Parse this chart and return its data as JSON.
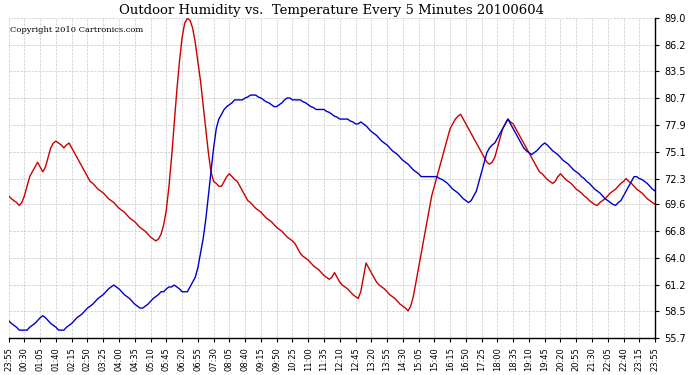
{
  "title": "Outdoor Humidity vs.  Temperature Every 5 Minutes 20100604",
  "copyright": "Copyright 2010 Cartronics.com",
  "bg_color": "#ffffff",
  "plot_bg_color": "#ffffff",
  "grid_color": "#c8c8c8",
  "line_humidity_color": "#cc0000",
  "line_temp_color": "#0000cc",
  "ylim": [
    55.7,
    89.0
  ],
  "yticks": [
    55.7,
    58.5,
    61.2,
    64.0,
    66.8,
    69.6,
    72.3,
    75.1,
    77.9,
    80.7,
    83.5,
    86.2,
    89.0
  ],
  "x_labels": [
    "23:55",
    "00:30",
    "01:05",
    "01:40",
    "02:15",
    "02:50",
    "03:25",
    "04:00",
    "04:35",
    "05:10",
    "05:45",
    "06:20",
    "06:55",
    "07:30",
    "08:05",
    "08:40",
    "09:15",
    "09:50",
    "10:25",
    "11:00",
    "11:35",
    "12:10",
    "12:45",
    "13:20",
    "13:55",
    "14:30",
    "15:05",
    "15:40",
    "16:15",
    "16:50",
    "17:25",
    "18:00",
    "18:35",
    "19:10",
    "19:45",
    "20:20",
    "20:55",
    "21:30",
    "22:05",
    "22:40",
    "23:15",
    "23:55"
  ],
  "n_ticks": 42,
  "humidity": [
    70.5,
    70.2,
    70.0,
    69.8,
    69.5,
    69.8,
    70.5,
    71.5,
    72.5,
    73.0,
    73.5,
    74.0,
    73.5,
    73.0,
    73.5,
    74.5,
    75.5,
    76.0,
    76.2,
    76.0,
    75.8,
    75.5,
    75.8,
    76.0,
    75.5,
    75.0,
    74.5,
    74.0,
    73.5,
    73.0,
    72.5,
    72.0,
    71.8,
    71.5,
    71.2,
    71.0,
    70.8,
    70.5,
    70.2,
    70.0,
    69.8,
    69.5,
    69.2,
    69.0,
    68.8,
    68.5,
    68.2,
    68.0,
    67.8,
    67.5,
    67.2,
    67.0,
    66.8,
    66.5,
    66.2,
    66.0,
    65.8,
    66.0,
    66.5,
    67.5,
    69.0,
    71.5,
    74.5,
    78.0,
    81.5,
    84.5,
    87.0,
    88.5,
    89.0,
    88.8,
    88.0,
    86.5,
    84.5,
    82.5,
    80.0,
    77.5,
    75.0,
    73.0,
    72.0,
    71.8,
    71.5,
    71.5,
    72.0,
    72.5,
    72.8,
    72.5,
    72.2,
    72.0,
    71.5,
    71.0,
    70.5,
    70.0,
    69.8,
    69.5,
    69.2,
    69.0,
    68.8,
    68.5,
    68.2,
    68.0,
    67.8,
    67.5,
    67.2,
    67.0,
    66.8,
    66.5,
    66.2,
    66.0,
    65.8,
    65.5,
    65.0,
    64.5,
    64.2,
    64.0,
    63.8,
    63.5,
    63.2,
    63.0,
    62.8,
    62.5,
    62.2,
    62.0,
    61.8,
    62.0,
    62.5,
    62.0,
    61.5,
    61.2,
    61.0,
    60.8,
    60.5,
    60.2,
    60.0,
    59.8,
    60.5,
    62.0,
    63.5,
    63.0,
    62.5,
    62.0,
    61.5,
    61.2,
    61.0,
    60.8,
    60.5,
    60.2,
    60.0,
    59.8,
    59.5,
    59.2,
    59.0,
    58.8,
    58.5,
    59.0,
    60.0,
    61.5,
    63.0,
    64.5,
    66.0,
    67.5,
    69.0,
    70.5,
    71.5,
    72.5,
    73.5,
    74.5,
    75.5,
    76.5,
    77.5,
    78.0,
    78.5,
    78.8,
    79.0,
    78.5,
    78.0,
    77.5,
    77.0,
    76.5,
    76.0,
    75.5,
    75.0,
    74.5,
    74.0,
    73.8,
    74.0,
    74.5,
    75.5,
    76.5,
    77.5,
    78.0,
    78.5,
    78.2,
    78.0,
    77.5,
    77.0,
    76.5,
    76.0,
    75.5,
    75.0,
    74.5,
    74.0,
    73.5,
    73.0,
    72.8,
    72.5,
    72.2,
    72.0,
    71.8,
    72.0,
    72.5,
    72.8,
    72.5,
    72.2,
    72.0,
    71.8,
    71.5,
    71.2,
    71.0,
    70.8,
    70.5,
    70.3,
    70.0,
    69.8,
    69.6,
    69.5,
    69.8,
    70.0,
    70.2,
    70.5,
    70.8,
    71.0,
    71.2,
    71.5,
    71.8,
    72.0,
    72.3,
    72.0,
    71.8,
    71.5,
    71.2,
    71.0,
    70.8,
    70.5,
    70.2,
    70.0,
    69.8,
    69.6
  ],
  "temperature": [
    57.5,
    57.2,
    57.0,
    56.8,
    56.5,
    56.5,
    56.5,
    56.5,
    56.8,
    57.0,
    57.2,
    57.5,
    57.8,
    58.0,
    57.8,
    57.5,
    57.2,
    57.0,
    56.8,
    56.5,
    56.5,
    56.5,
    56.8,
    57.0,
    57.2,
    57.5,
    57.8,
    58.0,
    58.2,
    58.5,
    58.8,
    59.0,
    59.2,
    59.5,
    59.8,
    60.0,
    60.2,
    60.5,
    60.8,
    61.0,
    61.2,
    61.0,
    60.8,
    60.5,
    60.2,
    60.0,
    59.8,
    59.5,
    59.2,
    59.0,
    58.8,
    58.8,
    59.0,
    59.2,
    59.5,
    59.8,
    60.0,
    60.2,
    60.5,
    60.5,
    60.8,
    61.0,
    61.0,
    61.2,
    61.0,
    60.8,
    60.5,
    60.5,
    60.5,
    61.0,
    61.5,
    62.0,
    63.0,
    64.5,
    66.0,
    68.0,
    70.5,
    73.0,
    75.5,
    77.5,
    78.5,
    79.0,
    79.5,
    79.8,
    80.0,
    80.2,
    80.5,
    80.5,
    80.5,
    80.5,
    80.7,
    80.8,
    81.0,
    81.0,
    81.0,
    80.8,
    80.7,
    80.5,
    80.3,
    80.2,
    80.0,
    79.8,
    79.8,
    80.0,
    80.2,
    80.5,
    80.7,
    80.7,
    80.5,
    80.5,
    80.5,
    80.5,
    80.3,
    80.2,
    80.0,
    79.8,
    79.7,
    79.5,
    79.5,
    79.5,
    79.5,
    79.3,
    79.2,
    79.0,
    78.8,
    78.7,
    78.5,
    78.5,
    78.5,
    78.5,
    78.3,
    78.2,
    78.0,
    78.0,
    78.2,
    78.0,
    77.8,
    77.5,
    77.2,
    77.0,
    76.8,
    76.5,
    76.2,
    76.0,
    75.8,
    75.5,
    75.2,
    75.0,
    74.8,
    74.5,
    74.2,
    74.0,
    73.8,
    73.5,
    73.2,
    73.0,
    72.8,
    72.5,
    72.5,
    72.5,
    72.5,
    72.5,
    72.5,
    72.5,
    72.3,
    72.2,
    72.0,
    71.8,
    71.5,
    71.2,
    71.0,
    70.8,
    70.5,
    70.2,
    70.0,
    69.8,
    70.0,
    70.5,
    71.0,
    72.0,
    73.0,
    74.0,
    75.0,
    75.5,
    75.8,
    76.0,
    76.5,
    77.0,
    77.5,
    78.0,
    78.5,
    78.0,
    77.5,
    77.0,
    76.5,
    76.0,
    75.5,
    75.2,
    75.0,
    74.8,
    75.0,
    75.2,
    75.5,
    75.8,
    76.0,
    75.8,
    75.5,
    75.2,
    75.0,
    74.8,
    74.5,
    74.2,
    74.0,
    73.8,
    73.5,
    73.2,
    73.0,
    72.8,
    72.5,
    72.3,
    72.0,
    71.8,
    71.5,
    71.2,
    71.0,
    70.8,
    70.5,
    70.2,
    70.0,
    69.8,
    69.6,
    69.5,
    69.8,
    70.0,
    70.5,
    71.0,
    71.5,
    72.0,
    72.5,
    72.5,
    72.3,
    72.2,
    72.0,
    71.8,
    71.5,
    71.2,
    71.0
  ]
}
